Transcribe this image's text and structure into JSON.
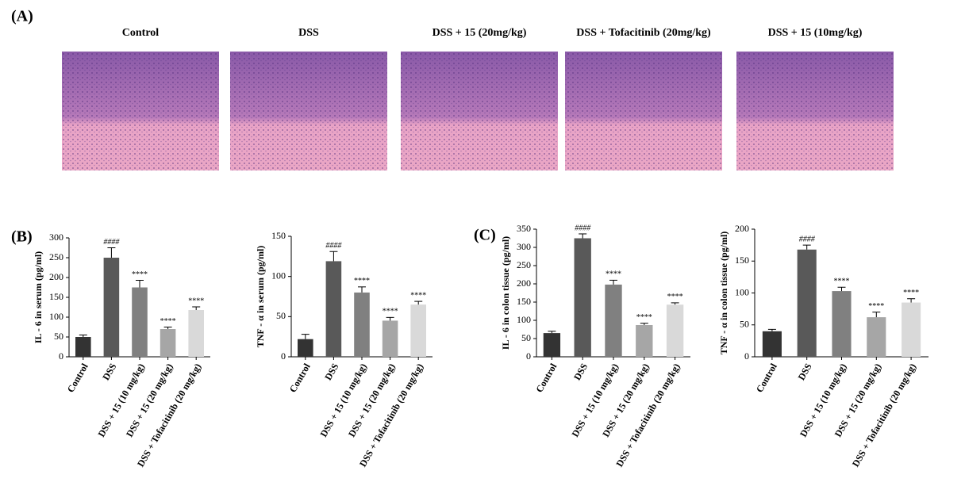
{
  "panel_labels": [
    "(A)",
    "(B)",
    "(C)"
  ],
  "histology": {
    "titles": [
      "Control",
      "DSS",
      "DSS + 15 (20mg/kg)",
      "DSS + Tofacitinib (20mg/kg)",
      "DSS + 15 (10mg/kg)"
    ]
  },
  "chart_data": [
    {
      "type": "bar",
      "y_label": "IL - 6 in serum (pg/ml)",
      "categories": [
        "Control",
        "DSS",
        "DSS + 15 (10 mg/kg)",
        "DSS + 15 (20 mg/kg)",
        "DSS + Tofacitinib (20 mg/kg)"
      ],
      "values": [
        50,
        250,
        175,
        70,
        118
      ],
      "errors": [
        5,
        25,
        18,
        5,
        8
      ],
      "significance": [
        null,
        "####",
        "****",
        "****",
        "****"
      ],
      "colors": [
        "#333333",
        "#595959",
        "#808080",
        "#a6a6a6",
        "#d9d9d9"
      ],
      "ylim": [
        0,
        300
      ],
      "yticks": [
        0,
        50,
        100,
        150,
        200,
        250,
        300
      ]
    },
    {
      "type": "bar",
      "y_label": "TNF - α in serum (pg/ml)",
      "categories": [
        "Control",
        "DSS",
        "DSS + 15 (10 mg/kg)",
        "DSS + 15 (20 mg/kg)",
        "DSS + Tofacitinib (20 mg/kg)"
      ],
      "values": [
        22,
        119,
        80,
        45,
        65
      ],
      "errors": [
        6,
        12,
        7,
        4,
        4
      ],
      "significance": [
        null,
        "####",
        "****",
        "****",
        "****"
      ],
      "colors": [
        "#333333",
        "#595959",
        "#808080",
        "#a6a6a6",
        "#d9d9d9"
      ],
      "ylim": [
        0,
        150
      ],
      "yticks": [
        0,
        50,
        100,
        150
      ]
    },
    {
      "type": "bar",
      "y_label": "IL - 6 in colon tissue (pg/ml)",
      "categories": [
        "Control",
        "DSS",
        "DSS + 15 (10 mg/kg)",
        "DSS + 15 (20 mg/kg)",
        "DSS + Tofacitinib (20 mg/kg)"
      ],
      "values": [
        65,
        325,
        198,
        87,
        143
      ],
      "errors": [
        5,
        12,
        12,
        5,
        5
      ],
      "significance": [
        null,
        "####",
        "****",
        "****",
        "****"
      ],
      "colors": [
        "#333333",
        "#595959",
        "#808080",
        "#a6a6a6",
        "#d9d9d9"
      ],
      "ylim": [
        0,
        350
      ],
      "yticks": [
        0,
        50,
        100,
        150,
        200,
        250,
        300,
        350
      ]
    },
    {
      "type": "bar",
      "y_label": "TNF - α in colon tissue (pg/ml)",
      "categories": [
        "Control",
        "DSS",
        "DSS + 15 (10 mg/kg)",
        "DSS + 15 (20 mg/kg)",
        "DSS + Tofacitinib (20 mg/kg)"
      ],
      "values": [
        40,
        168,
        103,
        62,
        85
      ],
      "errors": [
        3,
        7,
        6,
        8,
        6
      ],
      "significance": [
        null,
        "####",
        "****",
        "****",
        "****"
      ],
      "colors": [
        "#333333",
        "#595959",
        "#808080",
        "#a6a6a6",
        "#d9d9d9"
      ],
      "ylim": [
        0,
        200
      ],
      "yticks": [
        0,
        50,
        100,
        150,
        200
      ]
    }
  ]
}
